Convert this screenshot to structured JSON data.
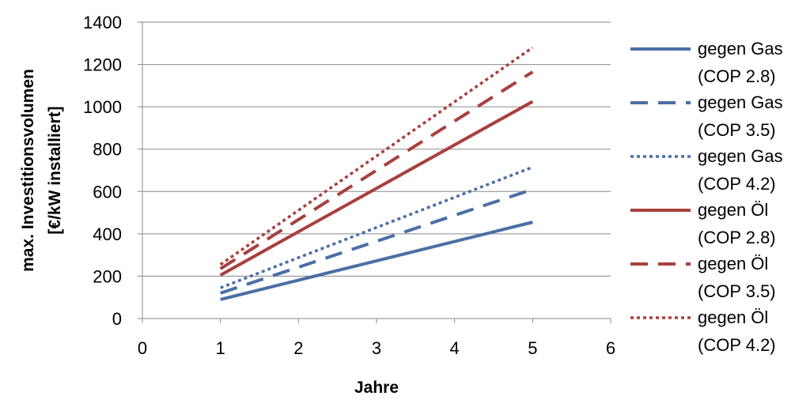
{
  "chart_data": {
    "type": "line",
    "xlabel": "Jahre",
    "ylabel_lines": [
      "max. Investitionsvolumen",
      "[€/kW installiert]"
    ],
    "xlim": [
      0,
      6
    ],
    "ylim": [
      0,
      1400
    ],
    "xticks": [
      "0",
      "1",
      "2",
      "3",
      "4",
      "5",
      "6"
    ],
    "yticks": [
      "0",
      "200",
      "400",
      "600",
      "800",
      "1000",
      "1200",
      "1400"
    ],
    "grid": "horizontal",
    "legend_position": "right",
    "x": [
      1,
      5
    ],
    "series": [
      {
        "name_lines": [
          "gegen Gas",
          "(COP 2.8)"
        ],
        "values": [
          90,
          455
        ],
        "color": "#4a6fa5",
        "style": "solid"
      },
      {
        "name_lines": [
          "gegen Gas",
          "(COP 3.5)"
        ],
        "values": [
          120,
          610
        ],
        "color": "#4a6fa5",
        "style": "dashed"
      },
      {
        "name_lines": [
          "gegen Gas",
          "(COP 4.2)"
        ],
        "values": [
          145,
          715
        ],
        "color": "#4a6fa5",
        "style": "dotted"
      },
      {
        "name_lines": [
          "gegen Öl",
          "(COP 2.8)"
        ],
        "values": [
          205,
          1025
        ],
        "color": "#a8403e",
        "style": "solid"
      },
      {
        "name_lines": [
          "gegen Öl",
          "(COP 3.5)"
        ],
        "values": [
          235,
          1165
        ],
        "color": "#a8403e",
        "style": "dashed"
      },
      {
        "name_lines": [
          "gegen Öl",
          "(COP 4.2)"
        ],
        "values": [
          255,
          1280
        ],
        "color": "#a8403e",
        "style": "dotted"
      }
    ]
  }
}
